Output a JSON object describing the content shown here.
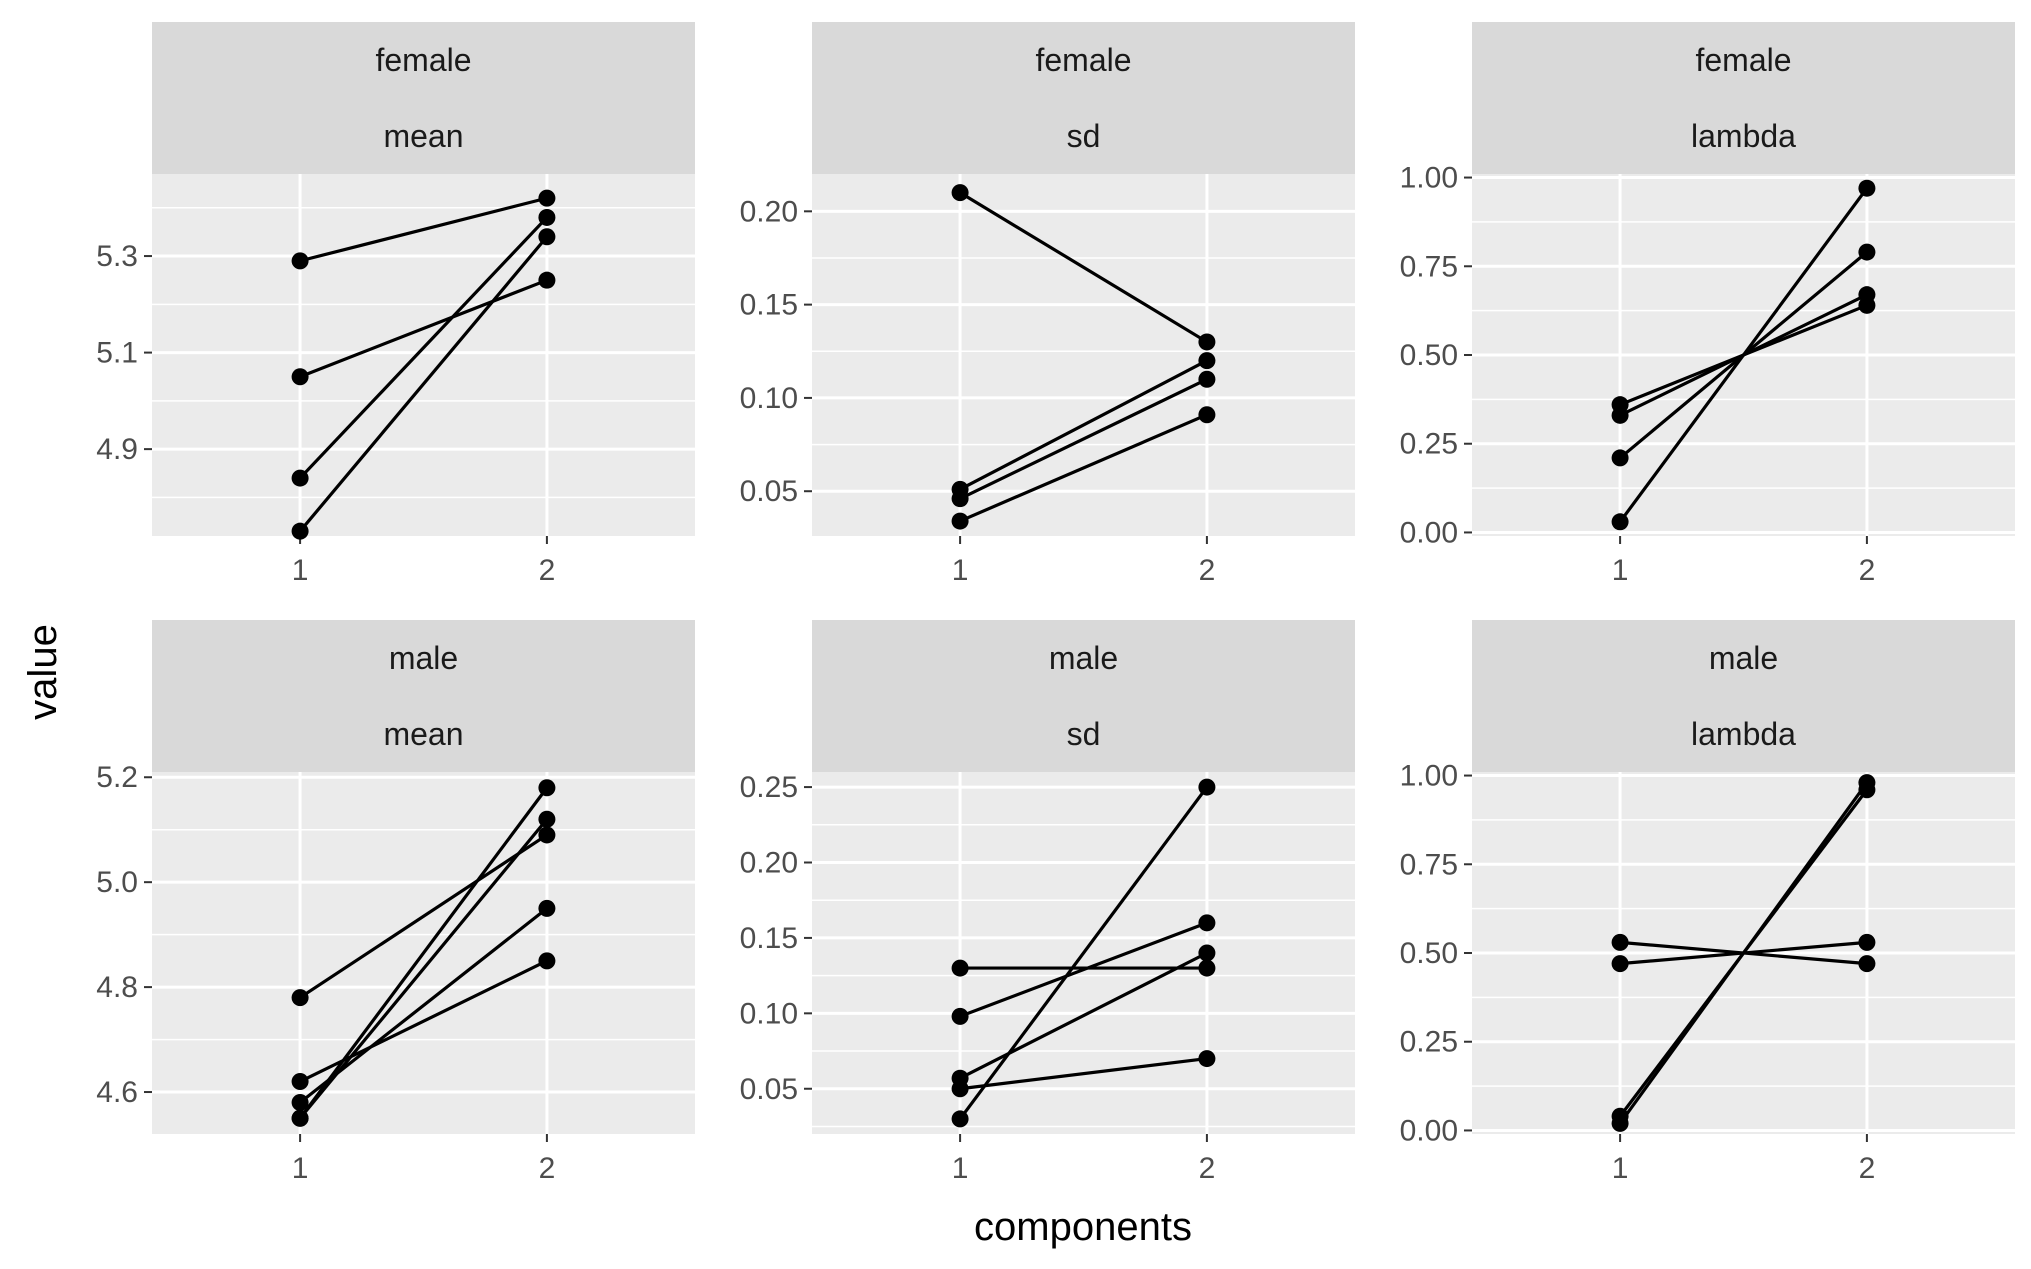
{
  "chart_data": {
    "type": "line",
    "facets": "grid",
    "xlabel": "components",
    "ylabel": "value",
    "x": [
      1,
      2
    ],
    "x_ticks": [
      "1",
      "2"
    ],
    "panels": [
      {
        "strip_top": "female",
        "strip_bottom": "mean",
        "ylim": [
          4.72,
          5.47
        ],
        "y_ticks": [
          4.9,
          5.1,
          5.3
        ],
        "y_tick_labels": [
          "4.9",
          "5.1",
          "5.3"
        ],
        "series": [
          {
            "values": [
              5.29,
              5.42
            ]
          },
          {
            "values": [
              5.05,
              5.25
            ]
          },
          {
            "values": [
              4.84,
              5.38
            ]
          },
          {
            "values": [
              4.73,
              5.34
            ]
          }
        ]
      },
      {
        "strip_top": "female",
        "strip_bottom": "sd",
        "ylim": [
          0.026,
          0.22
        ],
        "y_ticks": [
          0.05,
          0.1,
          0.15,
          0.2
        ],
        "y_tick_labels": [
          "0.05",
          "0.10",
          "0.15",
          "0.20"
        ],
        "series": [
          {
            "values": [
              0.21,
              0.13
            ]
          },
          {
            "values": [
              0.051,
              0.12
            ]
          },
          {
            "values": [
              0.046,
              0.11
            ]
          },
          {
            "values": [
              0.034,
              0.091
            ]
          }
        ]
      },
      {
        "strip_top": "female",
        "strip_bottom": "lambda",
        "ylim": [
          -0.01,
          1.01
        ],
        "y_ticks": [
          0.0,
          0.25,
          0.5,
          0.75,
          1.0
        ],
        "y_tick_labels": [
          "0.00",
          "0.25",
          "0.50",
          "0.75",
          "1.00"
        ],
        "series": [
          {
            "values": [
              0.03,
              0.97
            ]
          },
          {
            "values": [
              0.21,
              0.79
            ]
          },
          {
            "values": [
              0.33,
              0.67
            ]
          },
          {
            "values": [
              0.36,
              0.64
            ]
          }
        ]
      },
      {
        "strip_top": "male",
        "strip_bottom": "mean",
        "ylim": [
          4.52,
          5.21
        ],
        "y_ticks": [
          4.6,
          4.8,
          5.0,
          5.2
        ],
        "y_tick_labels": [
          "4.6",
          "4.8",
          "5.0",
          "5.2"
        ],
        "series": [
          {
            "values": [
              4.78,
              5.09
            ]
          },
          {
            "values": [
              4.62,
              4.85
            ]
          },
          {
            "values": [
              4.58,
              4.95
            ]
          },
          {
            "values": [
              4.55,
              5.18
            ]
          },
          {
            "values": [
              4.55,
              5.12
            ]
          }
        ]
      },
      {
        "strip_top": "male",
        "strip_bottom": "sd",
        "ylim": [
          0.02,
          0.26
        ],
        "y_ticks": [
          0.05,
          0.1,
          0.15,
          0.2,
          0.25
        ],
        "y_tick_labels": [
          "0.05",
          "0.10",
          "0.15",
          "0.20",
          "0.25"
        ],
        "series": [
          {
            "values": [
              0.13,
              0.13
            ]
          },
          {
            "values": [
              0.098,
              0.16
            ]
          },
          {
            "values": [
              0.057,
              0.14
            ]
          },
          {
            "values": [
              0.05,
              0.07
            ]
          },
          {
            "values": [
              0.03,
              0.25
            ]
          }
        ]
      },
      {
        "strip_top": "male",
        "strip_bottom": "lambda",
        "ylim": [
          -0.01,
          1.01
        ],
        "y_ticks": [
          0.0,
          0.25,
          0.5,
          0.75,
          1.0
        ],
        "y_tick_labels": [
          "0.00",
          "0.25",
          "0.50",
          "0.75",
          "1.00"
        ],
        "series": [
          {
            "values": [
              0.53,
              0.47
            ]
          },
          {
            "values": [
              0.47,
              0.53
            ]
          },
          {
            "values": [
              0.04,
              0.96
            ]
          },
          {
            "values": [
              0.02,
              0.98
            ]
          }
        ]
      }
    ]
  }
}
